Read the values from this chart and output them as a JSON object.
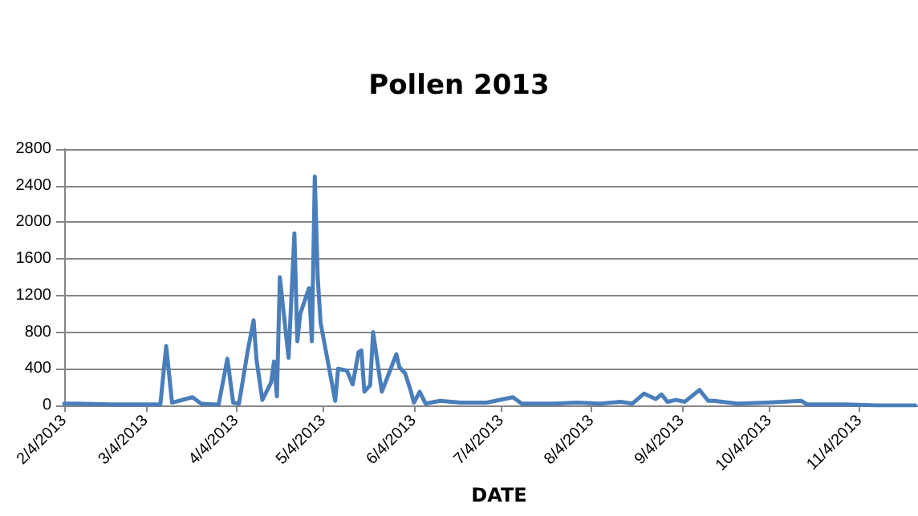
{
  "chart_data": {
    "type": "line",
    "title": "Pollen 2013",
    "xlabel": "DATE",
    "x": [
      "2013-02-04",
      "2013-02-08",
      "2013-02-20",
      "2013-03-09",
      "2013-03-11",
      "2013-03-13",
      "2013-03-20",
      "2013-03-23",
      "2013-03-27",
      "2013-03-29",
      "2013-04-01",
      "2013-04-03",
      "2013-04-05",
      "2013-04-08",
      "2013-04-10",
      "2013-04-11",
      "2013-04-13",
      "2013-04-16",
      "2013-04-17",
      "2013-04-18",
      "2013-04-19",
      "2013-04-22",
      "2013-04-24",
      "2013-04-25",
      "2013-04-26",
      "2013-04-29",
      "2013-04-30",
      "2013-05-01",
      "2013-05-02",
      "2013-05-03",
      "2013-05-08",
      "2013-05-09",
      "2013-05-12",
      "2013-05-14",
      "2013-05-16",
      "2013-05-17",
      "2013-05-18",
      "2013-05-20",
      "2013-05-21",
      "2013-05-24",
      "2013-05-29",
      "2013-05-30",
      "2013-06-01",
      "2013-06-03",
      "2013-06-04",
      "2013-06-06",
      "2013-06-08",
      "2013-06-13",
      "2013-06-20",
      "2013-06-25",
      "2013-06-29",
      "2013-07-08",
      "2013-07-11",
      "2013-07-22",
      "2013-07-30",
      "2013-08-07",
      "2013-08-14",
      "2013-08-18",
      "2013-08-22",
      "2013-08-26",
      "2013-08-28",
      "2013-08-30",
      "2013-09-02",
      "2013-09-05",
      "2013-09-10",
      "2013-09-13",
      "2013-09-15",
      "2013-09-23",
      "2013-10-03",
      "2013-10-15",
      "2013-10-17",
      "2013-10-30",
      "2013-11-10",
      "2013-11-23"
    ],
    "series": [
      {
        "color": "#4a7ebb",
        "values": [
          20,
          20,
          10,
          10,
          650,
          30,
          90,
          20,
          10,
          10,
          510,
          30,
          20,
          600,
          930,
          500,
          60,
          250,
          480,
          100,
          1400,
          520,
          1880,
          700,
          1000,
          1280,
          700,
          2500,
          1400,
          900,
          50,
          400,
          380,
          230,
          580,
          600,
          150,
          220,
          800,
          150,
          560,
          420,
          350,
          150,
          30,
          150,
          20,
          50,
          30,
          30,
          30,
          90,
          20,
          20,
          30,
          20,
          40,
          20,
          130,
          70,
          120,
          40,
          60,
          40,
          170,
          50,
          50,
          20,
          30,
          50,
          10,
          10,
          0,
          0
        ]
      }
    ],
    "xlim": [
      "2013-02-04",
      "2013-11-24"
    ],
    "xticks": [
      {
        "value": "2013-02-04",
        "label": "2/4/2013"
      },
      {
        "value": "2013-03-04",
        "label": "3/4/2013"
      },
      {
        "value": "2013-04-04",
        "label": "4/4/2013"
      },
      {
        "value": "2013-05-04",
        "label": "5/4/2013"
      },
      {
        "value": "2013-06-04",
        "label": "6/4/2013"
      },
      {
        "value": "2013-07-04",
        "label": "7/4/2013"
      },
      {
        "value": "2013-08-04",
        "label": "8/4/2013"
      },
      {
        "value": "2013-09-04",
        "label": "9/4/2013"
      },
      {
        "value": "2013-10-04",
        "label": "10/4/2013"
      },
      {
        "value": "2013-11-04",
        "label": "11/4/2013"
      }
    ],
    "ylim": [
      0,
      2800
    ],
    "yticks": [
      0,
      400,
      800,
      1200,
      1600,
      2000,
      2400,
      2800
    ],
    "grid": "y",
    "marker": "none",
    "line_style": "solid"
  }
}
